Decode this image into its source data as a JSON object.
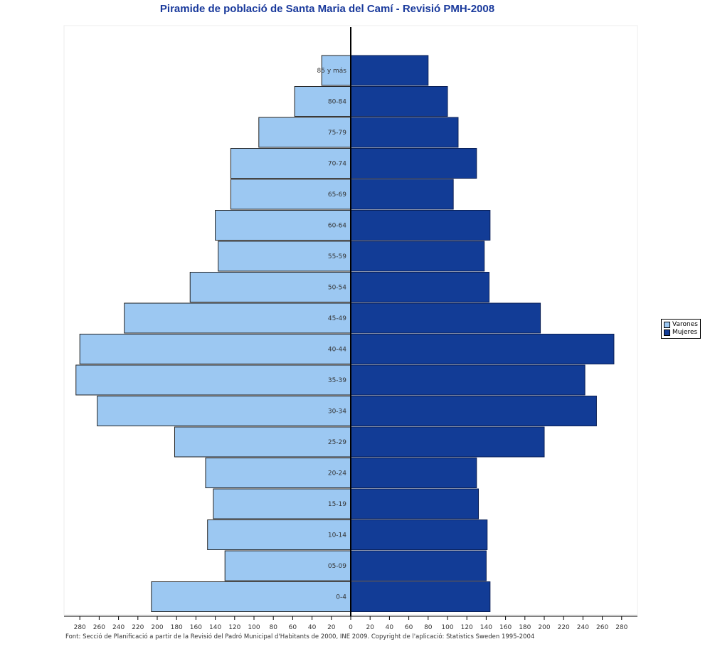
{
  "chart_data": {
    "type": "bar",
    "title": "Piramide de població de Santa Maria del Camí - Revisió PMH-2008",
    "source": "Font: Secció de Planificació a partir de la Revisió del Padró Municipal d'Habitants de 2000, INE 2009. Copyright de l'aplicació: Statistics Sweden 1995-2004",
    "orientation": "horizontal",
    "xlim": [
      -290,
      290
    ],
    "x_ticks": [
      -280,
      -260,
      -240,
      -220,
      -200,
      -180,
      -160,
      -140,
      -120,
      -100,
      -80,
      -60,
      -40,
      -20,
      0,
      20,
      40,
      60,
      80,
      100,
      120,
      140,
      160,
      180,
      200,
      220,
      240,
      260,
      280
    ],
    "x_tick_labels": [
      "280",
      "260",
      "240",
      "220",
      "200",
      "180",
      "160",
      "140",
      "120",
      "100",
      "80",
      "60",
      "40",
      "20",
      "0",
      "20",
      "40",
      "60",
      "80",
      "100",
      "120",
      "140",
      "160",
      "180",
      "200",
      "220",
      "240",
      "260",
      "280"
    ],
    "categories": [
      "85 y más",
      "80-84",
      "75-79",
      "70-74",
      "65-69",
      "60-64",
      "55-59",
      "50-54",
      "45-49",
      "40-44",
      "35-39",
      "30-34",
      "25-29",
      "20-24",
      "15-19",
      "10-14",
      "05-09",
      "0-4"
    ],
    "series": [
      {
        "name": "Varones",
        "color": "#9cc8f2",
        "values": [
          30,
          58,
          95,
          124,
          124,
          140,
          137,
          166,
          234,
          280,
          284,
          262,
          182,
          150,
          142,
          148,
          130,
          206
        ]
      },
      {
        "name": "Mujeres",
        "color": "#123c96",
        "values": [
          80,
          100,
          111,
          130,
          106,
          144,
          138,
          143,
          196,
          272,
          242,
          254,
          200,
          130,
          132,
          141,
          140,
          144
        ]
      }
    ],
    "legend": {
      "position": "right",
      "entries": [
        "Varones",
        "Mujeres"
      ]
    },
    "grid": false
  }
}
